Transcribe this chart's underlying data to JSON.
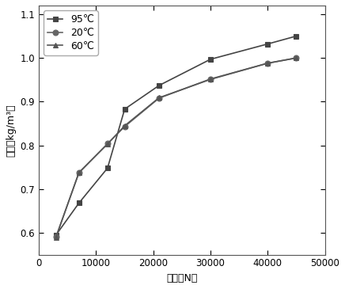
{
  "series": [
    {
      "label": "95℃",
      "marker": "s",
      "color": "#444444",
      "x": [
        3000,
        7000,
        12000,
        15000,
        21000,
        30000,
        40000,
        45000
      ],
      "y": [
        0.595,
        0.668,
        0.748,
        0.883,
        0.937,
        0.997,
        1.032,
        1.05
      ]
    },
    {
      "label": "20℃",
      "marker": "o",
      "color": "#666666",
      "x": [
        3000,
        7000,
        12000,
        15000,
        21000,
        30000,
        40000,
        45000
      ],
      "y": [
        0.591,
        0.737,
        0.804,
        0.843,
        0.908,
        0.952,
        0.988,
        1.0
      ]
    },
    {
      "label": "60℃",
      "marker": "^",
      "color": "#555555",
      "x": [
        3000,
        7000,
        12000,
        15000,
        21000,
        30000,
        40000,
        45000
      ],
      "y": [
        0.59,
        0.738,
        0.803,
        0.845,
        0.909,
        0.951,
        0.988,
        1.0
      ]
    }
  ],
  "xlabel": "压力（N）",
  "ylabel": "密度（kg/m³）",
  "xlim": [
    0,
    50000
  ],
  "ylim": [
    0.55,
    1.12
  ],
  "xticks": [
    0,
    10000,
    20000,
    30000,
    40000,
    50000
  ],
  "xtick_labels": [
    "0",
    "10000",
    "20000",
    "30000",
    "40000",
    "50000"
  ],
  "yticks": [
    0.6,
    0.7,
    0.8,
    0.9,
    1.0,
    1.1
  ],
  "ytick_labels": [
    "0.6",
    "0.7",
    "0.8",
    "0.9",
    "1.0",
    "1.1"
  ],
  "background_color": "#ffffff"
}
